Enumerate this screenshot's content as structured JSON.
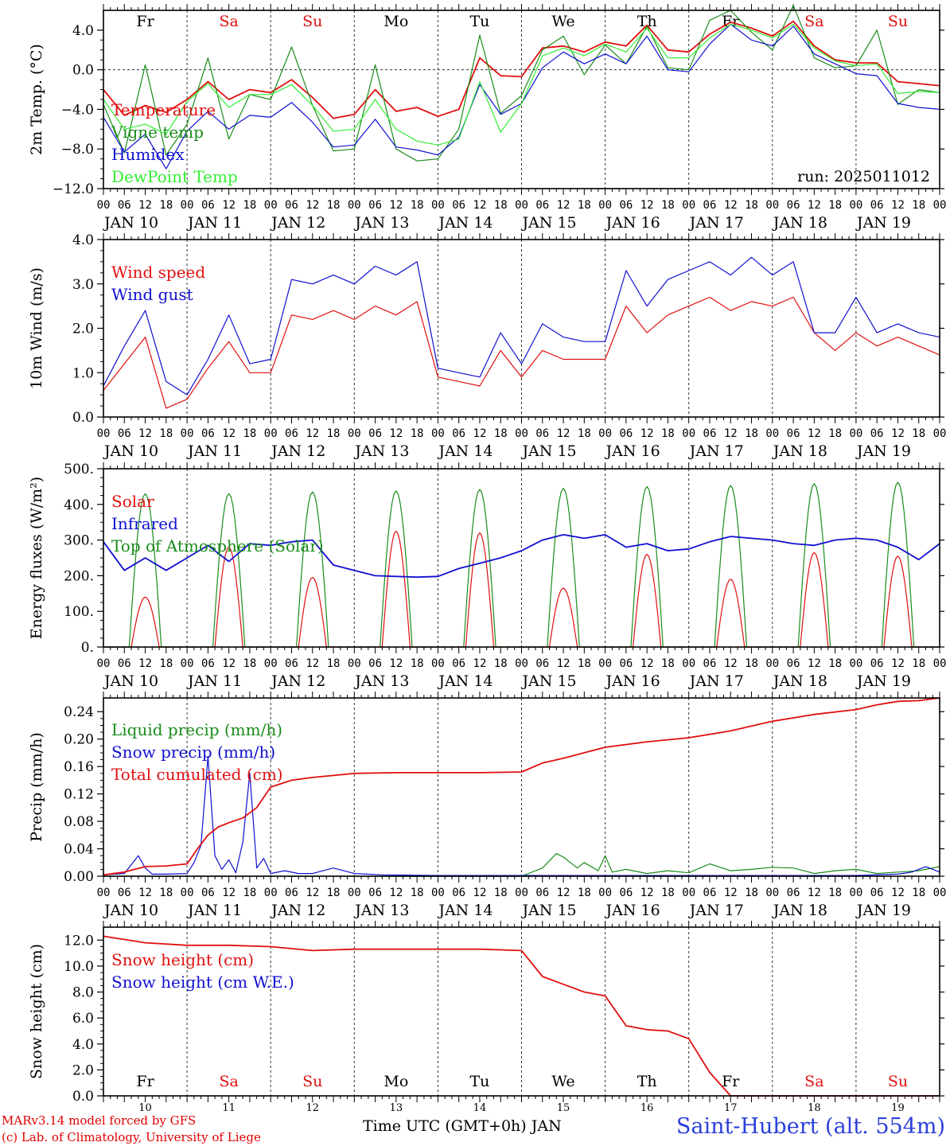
{
  "footer": {
    "credit_line1": "MARv3.14 model forced by GFS",
    "credit_line2": "(c) Lab. of Climatology, University of Liege",
    "x_title": "Time UTC (GMT+0h) JAN",
    "station": "Saint-Hubert (alt. 554m)"
  },
  "chart_data": [
    {
      "type": "line",
      "ylabel": "2m Temp. (°C)",
      "ylim": [
        -12,
        6
      ],
      "yticks": [
        -12,
        -8,
        -4,
        0,
        4
      ],
      "ytick_labels": [
        "−12.0",
        "−8.0",
        "−4.0",
        "0.0",
        "4.0"
      ],
      "annotation": "run: 2025011012",
      "zero_line": true,
      "day_labels": [
        "Fr",
        "Sa",
        "Su",
        "Mo",
        "Tu",
        "We",
        "Th",
        "Fr",
        "Sa",
        "Su"
      ],
      "date_labels": [
        "JAN 10",
        "JAN 11",
        "JAN 12",
        "JAN 13",
        "JAN 14",
        "JAN 15",
        "JAN 16",
        "JAN 17",
        "JAN 18",
        "JAN 19"
      ],
      "x_hours": [
        0,
        6,
        12,
        18,
        24,
        30,
        36,
        42,
        48,
        54,
        60,
        66,
        72,
        78,
        84,
        90,
        96,
        102,
        108,
        114,
        120,
        126,
        132,
        138,
        144,
        150,
        156,
        162,
        168,
        174,
        180,
        186,
        192,
        198,
        204,
        210,
        216,
        222,
        228,
        234,
        240
      ],
      "series": [
        {
          "name": "Temperature",
          "color": "#e01010",
          "values": [
            -2.0,
            -4.6,
            -3.6,
            -4.3,
            -3.0,
            -1.2,
            -3.0,
            -2.0,
            -2.3,
            -1.0,
            -2.8,
            -4.9,
            -4.5,
            -2.0,
            -4.2,
            -3.8,
            -4.7,
            -4.0,
            1.2,
            -0.6,
            -0.7,
            2.2,
            2.4,
            1.8,
            2.8,
            2.4,
            4.5,
            2.0,
            1.8,
            3.6,
            4.8,
            4.2,
            3.4,
            4.9,
            2.4,
            1.0,
            0.7,
            0.7,
            -1.2,
            -1.4,
            -1.6
          ]
        },
        {
          "name": "Vigne temp",
          "color": "#1a8c1a",
          "values": [
            -3.5,
            -8.4,
            0.5,
            -8.6,
            -5.5,
            1.2,
            -7.0,
            -2.5,
            -3.0,
            2.3,
            -3.6,
            -8.2,
            -8.0,
            0.5,
            -8.0,
            -9.2,
            -9.0,
            -6.0,
            3.5,
            -4.4,
            -2.6,
            2.0,
            3.4,
            -0.5,
            2.5,
            0.6,
            4.4,
            0.2,
            0.0,
            5.0,
            6.0,
            3.8,
            2.0,
            6.5,
            1.2,
            0.2,
            0.4,
            4.0,
            -3.5,
            -2.0,
            -2.3
          ]
        },
        {
          "name": "Humidex",
          "color": "#1010d0",
          "values": [
            -4.8,
            -8.3,
            -6.5,
            -10.0,
            -6.2,
            -4.2,
            -6.0,
            -4.6,
            -4.8,
            -3.3,
            -5.3,
            -7.8,
            -7.6,
            -5.0,
            -7.8,
            -8.1,
            -8.6,
            -6.8,
            -1.5,
            -4.5,
            -3.4,
            0.2,
            1.8,
            0.6,
            1.6,
            0.6,
            3.4,
            0.0,
            -0.2,
            2.6,
            4.6,
            3.0,
            2.4,
            4.4,
            1.6,
            0.6,
            -0.4,
            -0.6,
            -3.4,
            -3.8,
            -4.0
          ]
        },
        {
          "name": "DewPoint Temp",
          "color": "#33ee33",
          "values": [
            -3.0,
            -6.0,
            -5.5,
            -6.5,
            -3.2,
            -1.4,
            -3.8,
            -2.5,
            -2.5,
            -1.5,
            -3.6,
            -6.2,
            -6.0,
            -3.0,
            -6.0,
            -7.2,
            -7.6,
            -7.0,
            -1.2,
            -6.3,
            -3.4,
            1.4,
            2.2,
            1.4,
            2.6,
            1.8,
            4.2,
            1.2,
            1.2,
            3.2,
            4.6,
            4.0,
            3.2,
            4.6,
            2.2,
            0.9,
            0.4,
            0.6,
            -2.4,
            -2.2,
            -2.3
          ]
        }
      ]
    },
    {
      "type": "line",
      "ylabel": "10m Wind (m/s)",
      "ylim": [
        0,
        4
      ],
      "yticks": [
        0,
        1,
        2,
        3,
        4
      ],
      "ytick_labels": [
        "0.0",
        "1.0",
        "2.0",
        "3.0",
        "4.0"
      ],
      "date_labels": [
        "JAN 10",
        "JAN 11",
        "JAN 12",
        "JAN 13",
        "JAN 14",
        "JAN 15",
        "JAN 16",
        "JAN 17",
        "JAN 18",
        "JAN 19"
      ],
      "x_hours": [
        0,
        6,
        12,
        18,
        24,
        30,
        36,
        42,
        48,
        54,
        60,
        66,
        72,
        78,
        84,
        90,
        96,
        102,
        108,
        114,
        120,
        126,
        132,
        138,
        144,
        150,
        156,
        162,
        168,
        174,
        180,
        186,
        192,
        198,
        204,
        210,
        216,
        222,
        228,
        234,
        240
      ],
      "series": [
        {
          "name": "Wind speed",
          "color": "#e01010",
          "values": [
            0.6,
            1.2,
            1.8,
            0.2,
            0.4,
            1.1,
            1.7,
            1.0,
            1.0,
            2.3,
            2.2,
            2.4,
            2.2,
            2.5,
            2.3,
            2.6,
            0.9,
            0.8,
            0.7,
            1.5,
            0.9,
            1.5,
            1.3,
            1.3,
            1.3,
            2.5,
            1.9,
            2.3,
            2.5,
            2.7,
            2.4,
            2.6,
            2.5,
            2.7,
            1.9,
            1.5,
            1.9,
            1.6,
            1.8,
            1.6,
            1.4
          ]
        },
        {
          "name": "Wind gust",
          "color": "#1010d0",
          "values": [
            0.7,
            1.6,
            2.4,
            0.8,
            0.5,
            1.3,
            2.3,
            1.2,
            1.3,
            3.1,
            3.0,
            3.2,
            3.0,
            3.4,
            3.2,
            3.5,
            1.1,
            1.0,
            0.9,
            1.9,
            1.2,
            2.1,
            1.8,
            1.7,
            1.7,
            3.3,
            2.5,
            3.1,
            3.3,
            3.5,
            3.2,
            3.6,
            3.2,
            3.5,
            1.9,
            1.9,
            2.7,
            1.9,
            2.1,
            1.9,
            1.8
          ]
        }
      ]
    },
    {
      "type": "line",
      "ylabel": "Energy fluxes (W/m²)",
      "ylim": [
        0,
        500
      ],
      "yticks": [
        0,
        100,
        200,
        300,
        400,
        500
      ],
      "ytick_labels": [
        "0.",
        "100.",
        "200.",
        "300.",
        "400.",
        "500."
      ],
      "date_labels": [
        "JAN 10",
        "JAN 11",
        "JAN 12",
        "JAN 13",
        "JAN 14",
        "JAN 15",
        "JAN 16",
        "JAN 17",
        "JAN 18",
        "JAN 19"
      ],
      "solar_peaks": [
        140,
        280,
        195,
        325,
        320,
        165,
        260,
        190,
        265,
        255
      ],
      "toa_peaks": [
        430,
        430,
        435,
        438,
        442,
        445,
        450,
        453,
        458,
        462
      ],
      "infrared": {
        "x_hours": [
          0,
          6,
          12,
          18,
          24,
          30,
          36,
          42,
          48,
          54,
          60,
          66,
          72,
          78,
          84,
          90,
          96,
          102,
          108,
          114,
          120,
          126,
          132,
          138,
          144,
          150,
          156,
          162,
          168,
          174,
          180,
          186,
          192,
          198,
          204,
          210,
          216,
          222,
          228,
          234,
          240
        ],
        "values": [
          295,
          215,
          250,
          215,
          250,
          285,
          240,
          290,
          285,
          295,
          300,
          230,
          215,
          200,
          198,
          196,
          198,
          220,
          235,
          250,
          270,
          300,
          315,
          305,
          315,
          280,
          290,
          270,
          275,
          295,
          310,
          305,
          300,
          290,
          285,
          300,
          305,
          300,
          280,
          245,
          290
        ]
      },
      "series": [
        {
          "name": "Solar",
          "color": "#e01010"
        },
        {
          "name": "Infrared",
          "color": "#1010d0"
        },
        {
          "name": "Top of Atmosphere (Solar)",
          "color": "#1a8c1a"
        }
      ]
    },
    {
      "type": "line",
      "ylabel": "Precip (mm/h)",
      "ylim": [
        0,
        0.26
      ],
      "yticks": [
        0,
        0.04,
        0.08,
        0.12,
        0.16,
        0.2,
        0.24
      ],
      "ytick_labels": [
        "0.00",
        "0.04",
        "0.08",
        "0.12",
        "0.16",
        "0.20",
        "0.24"
      ],
      "date_labels": [
        "JAN 10",
        "JAN 11",
        "JAN 12",
        "JAN 13",
        "JAN 14",
        "JAN 15",
        "JAN 16",
        "JAN 17",
        "JAN 18",
        "JAN 19"
      ],
      "series": [
        {
          "name": "Liquid precip (mm/h)",
          "color": "#1a8c1a",
          "x_hours": [
            0,
            120,
            126,
            130,
            132,
            136,
            138,
            142,
            144,
            146,
            150,
            156,
            162,
            168,
            174,
            180,
            186,
            192,
            198,
            204,
            210,
            216,
            222,
            228,
            234,
            240
          ],
          "values": [
            0,
            0,
            0.012,
            0.033,
            0.028,
            0.012,
            0.02,
            0.008,
            0.03,
            0.006,
            0.01,
            0.004,
            0.008,
            0.005,
            0.018,
            0.008,
            0.01,
            0.013,
            0.012,
            0.004,
            0.008,
            0.01,
            0.004,
            0.006,
            0.008,
            0.014
          ]
        },
        {
          "name": "Snow precip (mm/h)",
          "color": "#1010d0",
          "x_hours": [
            0,
            6,
            10,
            12,
            14,
            18,
            24,
            26,
            28,
            30,
            32,
            34,
            36,
            38,
            40,
            42,
            44,
            46,
            48,
            52,
            56,
            60,
            66,
            72,
            80,
            96,
            112,
            120,
            128,
            144,
            168,
            192,
            216,
            228,
            232,
            236,
            240
          ],
          "values": [
            0.002,
            0.004,
            0.03,
            0.012,
            0.003,
            0.003,
            0.004,
            0.02,
            0.045,
            0.175,
            0.03,
            0.01,
            0.024,
            0.005,
            0.05,
            0.15,
            0.012,
            0.026,
            0.004,
            0.008,
            0.004,
            0.004,
            0.012,
            0.004,
            0.002,
            0.001,
            0.001,
            0.001,
            0.001,
            0.001,
            0.001,
            0.001,
            0.001,
            0.003,
            0.006,
            0.014,
            0.006
          ]
        },
        {
          "name": "Total cumulated (cm)",
          "color": "#e01010",
          "x_hours": [
            0,
            6,
            12,
            18,
            24,
            27,
            30,
            33,
            36,
            40,
            44,
            48,
            54,
            60,
            66,
            72,
            84,
            96,
            108,
            120,
            126,
            132,
            138,
            144,
            156,
            168,
            180,
            192,
            204,
            216,
            222,
            228,
            234,
            240
          ],
          "values": [
            0.002,
            0.006,
            0.014,
            0.015,
            0.018,
            0.04,
            0.06,
            0.072,
            0.078,
            0.085,
            0.1,
            0.13,
            0.14,
            0.144,
            0.147,
            0.15,
            0.151,
            0.151,
            0.151,
            0.152,
            0.165,
            0.172,
            0.18,
            0.188,
            0.196,
            0.202,
            0.212,
            0.226,
            0.236,
            0.243,
            0.25,
            0.255,
            0.256,
            0.26
          ]
        }
      ]
    },
    {
      "type": "line",
      "ylabel": "Snow height (cm)",
      "ylim": [
        0,
        13
      ],
      "yticks": [
        0,
        2,
        4,
        6,
        8,
        10,
        12
      ],
      "ytick_labels": [
        "0.0",
        "2.0",
        "4.0",
        "6.0",
        "8.0",
        "10.0",
        "12.0"
      ],
      "day_labels": [
        "Fr",
        "Sa",
        "Su",
        "Mo",
        "Tu",
        "We",
        "Th",
        "Fr",
        "Sa",
        "Su"
      ],
      "date_numbers": [
        "10",
        "11",
        "12",
        "13",
        "14",
        "15",
        "16",
        "17",
        "18",
        "19"
      ],
      "series": [
        {
          "name": "Snow height (cm)",
          "color": "#e01010",
          "x_hours": [
            0,
            12,
            24,
            36,
            48,
            60,
            72,
            84,
            96,
            108,
            120,
            126,
            132,
            138,
            144,
            150,
            156,
            162,
            168,
            174,
            180,
            186,
            192,
            198,
            240
          ],
          "values": [
            12.3,
            11.8,
            11.6,
            11.6,
            11.5,
            11.2,
            11.3,
            11.3,
            11.3,
            11.3,
            11.2,
            9.2,
            8.6,
            8.0,
            7.7,
            5.4,
            5.1,
            5.0,
            4.4,
            1.8,
            0.0,
            0.0,
            0.0,
            0.0,
            0.0
          ]
        },
        {
          "name": "Snow height (cm W.E.)",
          "color": "#1010d0"
        }
      ]
    }
  ]
}
